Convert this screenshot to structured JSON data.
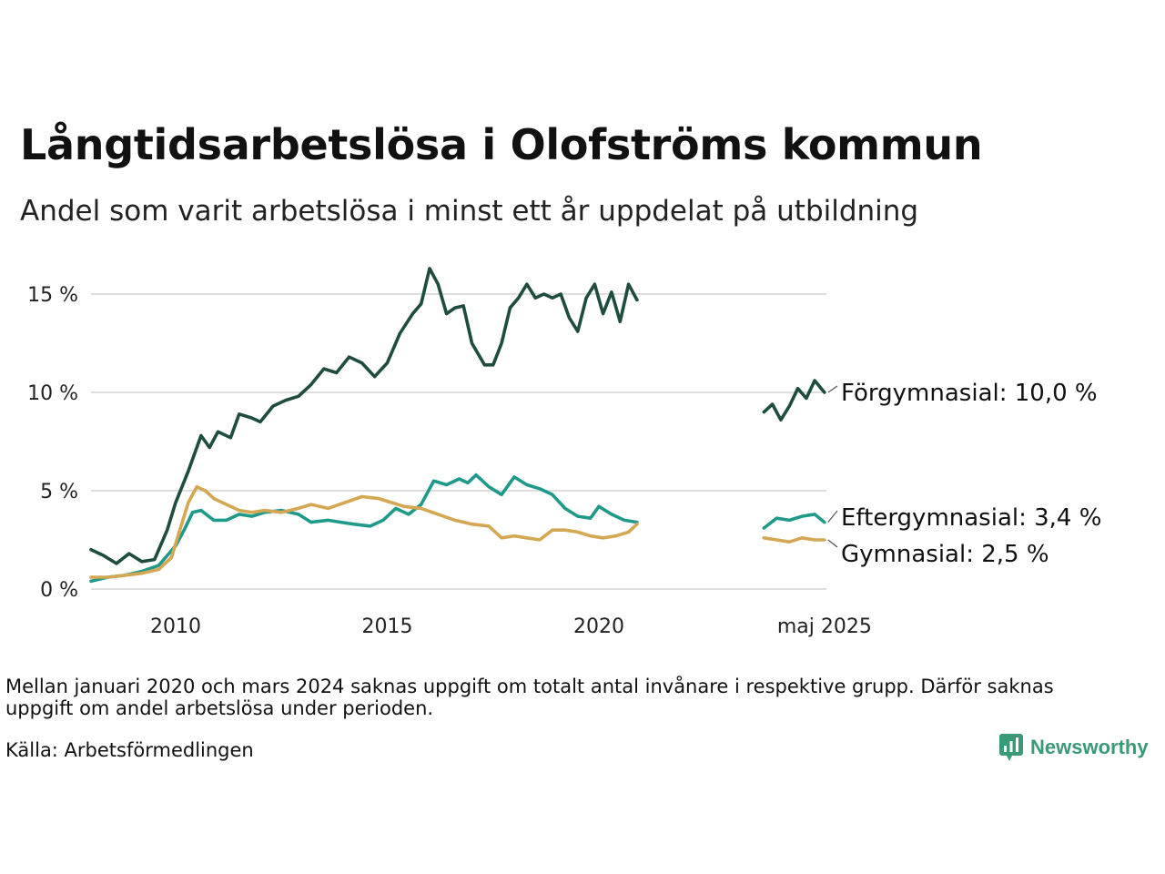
{
  "header": {
    "title": "Långtidsarbetslösa i Olofströms kommun",
    "subtitle": "Andel som varit arbetslösa i minst ett år uppdelat på utbildning"
  },
  "footer": {
    "note": "Mellan januari 2020 och mars 2024 saknas uppgift om totalt antal invånare i respektive grupp. Därför saknas uppgift om andel arbetslösa under perioden.",
    "source": "Källa: Arbetsförmedlingen",
    "brand": "Newsworthy",
    "brand_icon": "bar-chart-speech-bubble-icon"
  },
  "chart_data": {
    "type": "line",
    "x_ticks": [
      "2010",
      "2015",
      "2020",
      "maj 2025"
    ],
    "y_ticks": [
      "0 %",
      "5 %",
      "10 %",
      "15 %"
    ],
    "y_tick_values": [
      0,
      5,
      10,
      15
    ],
    "ylim": [
      0,
      16.5
    ],
    "grid": "horizontal",
    "legend": "end-of-line labels, right",
    "gap_note": "no data between early 2021 and 2024",
    "series": [
      {
        "name": "Förgymnasial",
        "end_label": "Förgymnasial: 10,0 %",
        "color": "#1e4d3f",
        "points": [
          [
            2008.0,
            2.0
          ],
          [
            2008.3,
            1.7
          ],
          [
            2008.6,
            1.3
          ],
          [
            2008.9,
            1.8
          ],
          [
            2009.2,
            1.4
          ],
          [
            2009.5,
            1.5
          ],
          [
            2009.8,
            3.0
          ],
          [
            2010.0,
            4.4
          ],
          [
            2010.3,
            6.0
          ],
          [
            2010.6,
            7.8
          ],
          [
            2010.8,
            7.2
          ],
          [
            2011.0,
            8.0
          ],
          [
            2011.3,
            7.7
          ],
          [
            2011.5,
            8.9
          ],
          [
            2011.8,
            8.7
          ],
          [
            2012.0,
            8.5
          ],
          [
            2012.3,
            9.3
          ],
          [
            2012.6,
            9.6
          ],
          [
            2012.9,
            9.8
          ],
          [
            2013.2,
            10.4
          ],
          [
            2013.5,
            11.2
          ],
          [
            2013.8,
            11.0
          ],
          [
            2014.1,
            11.8
          ],
          [
            2014.4,
            11.5
          ],
          [
            2014.7,
            10.8
          ],
          [
            2015.0,
            11.5
          ],
          [
            2015.3,
            13.0
          ],
          [
            2015.6,
            14.0
          ],
          [
            2015.8,
            14.5
          ],
          [
            2016.0,
            16.3
          ],
          [
            2016.2,
            15.5
          ],
          [
            2016.4,
            14.0
          ],
          [
            2016.6,
            14.3
          ],
          [
            2016.8,
            14.4
          ],
          [
            2017.0,
            12.5
          ],
          [
            2017.3,
            11.4
          ],
          [
            2017.5,
            11.4
          ],
          [
            2017.7,
            12.5
          ],
          [
            2017.9,
            14.3
          ],
          [
            2018.1,
            14.8
          ],
          [
            2018.3,
            15.5
          ],
          [
            2018.5,
            14.8
          ],
          [
            2018.7,
            15.0
          ],
          [
            2018.9,
            14.8
          ],
          [
            2019.1,
            15.0
          ],
          [
            2019.3,
            13.8
          ],
          [
            2019.5,
            13.1
          ],
          [
            2019.7,
            14.8
          ],
          [
            2019.9,
            15.5
          ],
          [
            2020.1,
            14.0
          ],
          [
            2020.3,
            15.1
          ],
          [
            2020.5,
            13.6
          ],
          [
            2020.7,
            15.5
          ],
          [
            2020.9,
            14.7
          ],
          [
            2023.9,
            9.0
          ],
          [
            2024.1,
            9.4
          ],
          [
            2024.3,
            8.6
          ],
          [
            2024.5,
            9.3
          ],
          [
            2024.7,
            10.2
          ],
          [
            2024.9,
            9.7
          ],
          [
            2025.1,
            10.6
          ],
          [
            2025.33,
            10.0
          ]
        ]
      },
      {
        "name": "Eftergymnasial",
        "end_label": "Eftergymnasial:  3,4 %",
        "color": "#1f9a8a",
        "points": [
          [
            2008.0,
            0.4
          ],
          [
            2008.4,
            0.6
          ],
          [
            2008.8,
            0.7
          ],
          [
            2009.2,
            0.9
          ],
          [
            2009.6,
            1.2
          ],
          [
            2010.0,
            2.2
          ],
          [
            2010.2,
            3.0
          ],
          [
            2010.4,
            3.9
          ],
          [
            2010.6,
            4.0
          ],
          [
            2010.9,
            3.5
          ],
          [
            2011.2,
            3.5
          ],
          [
            2011.5,
            3.8
          ],
          [
            2011.8,
            3.7
          ],
          [
            2012.1,
            3.9
          ],
          [
            2012.5,
            4.0
          ],
          [
            2012.9,
            3.8
          ],
          [
            2013.2,
            3.4
          ],
          [
            2013.6,
            3.5
          ],
          [
            2013.9,
            3.4
          ],
          [
            2014.2,
            3.3
          ],
          [
            2014.6,
            3.2
          ],
          [
            2014.9,
            3.5
          ],
          [
            2015.2,
            4.1
          ],
          [
            2015.5,
            3.8
          ],
          [
            2015.8,
            4.3
          ],
          [
            2016.1,
            5.5
          ],
          [
            2016.4,
            5.3
          ],
          [
            2016.7,
            5.6
          ],
          [
            2016.9,
            5.4
          ],
          [
            2017.1,
            5.8
          ],
          [
            2017.4,
            5.2
          ],
          [
            2017.7,
            4.8
          ],
          [
            2018.0,
            5.7
          ],
          [
            2018.3,
            5.3
          ],
          [
            2018.6,
            5.1
          ],
          [
            2018.9,
            4.8
          ],
          [
            2019.2,
            4.1
          ],
          [
            2019.5,
            3.7
          ],
          [
            2019.8,
            3.6
          ],
          [
            2020.0,
            4.2
          ],
          [
            2020.3,
            3.8
          ],
          [
            2020.6,
            3.5
          ],
          [
            2020.9,
            3.4
          ],
          [
            2023.9,
            3.1
          ],
          [
            2024.2,
            3.6
          ],
          [
            2024.5,
            3.5
          ],
          [
            2024.8,
            3.7
          ],
          [
            2025.1,
            3.8
          ],
          [
            2025.33,
            3.4
          ]
        ]
      },
      {
        "name": "Gymnasial",
        "end_label": "Gymnasial:  2,5 %",
        "color": "#d4a853",
        "points": [
          [
            2008.0,
            0.6
          ],
          [
            2008.4,
            0.6
          ],
          [
            2008.8,
            0.7
          ],
          [
            2009.2,
            0.8
          ],
          [
            2009.6,
            1.0
          ],
          [
            2009.9,
            1.6
          ],
          [
            2010.1,
            3.0
          ],
          [
            2010.3,
            4.4
          ],
          [
            2010.5,
            5.2
          ],
          [
            2010.7,
            5.0
          ],
          [
            2010.9,
            4.6
          ],
          [
            2011.2,
            4.3
          ],
          [
            2011.5,
            4.0
          ],
          [
            2011.8,
            3.9
          ],
          [
            2012.1,
            4.0
          ],
          [
            2012.5,
            3.9
          ],
          [
            2012.9,
            4.1
          ],
          [
            2013.2,
            4.3
          ],
          [
            2013.6,
            4.1
          ],
          [
            2014.0,
            4.4
          ],
          [
            2014.4,
            4.7
          ],
          [
            2014.8,
            4.6
          ],
          [
            2015.1,
            4.4
          ],
          [
            2015.4,
            4.2
          ],
          [
            2015.8,
            4.1
          ],
          [
            2016.2,
            3.8
          ],
          [
            2016.6,
            3.5
          ],
          [
            2017.0,
            3.3
          ],
          [
            2017.4,
            3.2
          ],
          [
            2017.7,
            2.6
          ],
          [
            2018.0,
            2.7
          ],
          [
            2018.3,
            2.6
          ],
          [
            2018.6,
            2.5
          ],
          [
            2018.9,
            3.0
          ],
          [
            2019.2,
            3.0
          ],
          [
            2019.5,
            2.9
          ],
          [
            2019.8,
            2.7
          ],
          [
            2020.1,
            2.6
          ],
          [
            2020.4,
            2.7
          ],
          [
            2020.7,
            2.9
          ],
          [
            2020.9,
            3.3
          ],
          [
            2023.9,
            2.6
          ],
          [
            2024.2,
            2.5
          ],
          [
            2024.5,
            2.4
          ],
          [
            2024.8,
            2.6
          ],
          [
            2025.1,
            2.5
          ],
          [
            2025.33,
            2.5
          ]
        ]
      }
    ]
  }
}
